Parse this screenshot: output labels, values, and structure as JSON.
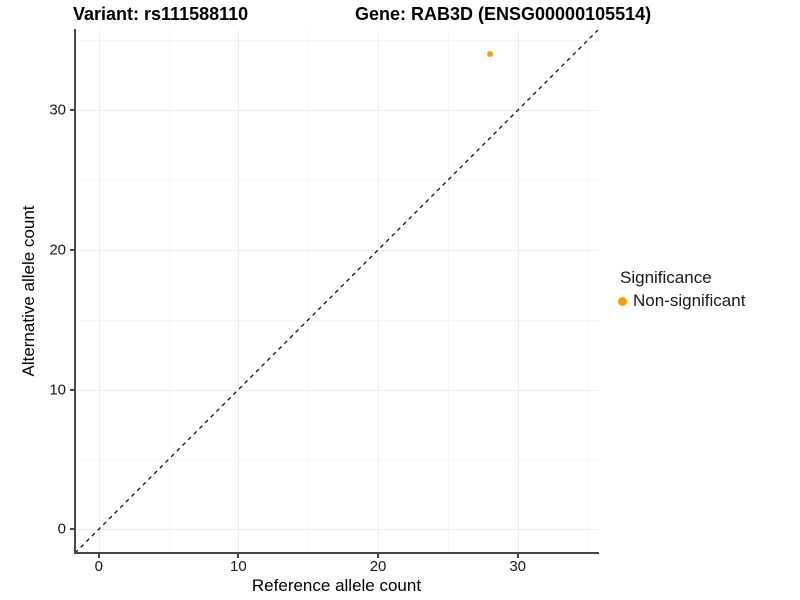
{
  "titles": {
    "left": "Variant: rs111588110",
    "right": "Gene: RAB3D (ENSG00000105514)"
  },
  "chart_data": {
    "type": "scatter",
    "title_left": "Variant: rs111588110",
    "title_right": "Gene: RAB3D (ENSG00000105514)",
    "xlabel": "Reference allele count",
    "ylabel": "Alternative allele count",
    "xlim": [
      -1.7,
      35.75
    ],
    "ylim": [
      -1.7,
      35.75
    ],
    "x_major_ticks": [
      0,
      10,
      20,
      30
    ],
    "y_major_ticks": [
      0,
      10,
      20,
      30
    ],
    "x_minor_ticks": [
      5,
      15,
      25,
      35
    ],
    "y_minor_ticks": [
      5,
      15,
      25,
      35
    ],
    "grid": "on",
    "points": [
      {
        "x": 28,
        "y": 34,
        "significance": "Non-significant",
        "color": "#F9A008"
      }
    ],
    "reference_line": {
      "kind": "identity y=x",
      "style": "dashed",
      "color": "#000000"
    },
    "legend": {
      "title": "Significance",
      "position": "right",
      "items": [
        {
          "label": "Non-significant",
          "color": "#F9A008"
        }
      ]
    }
  }
}
